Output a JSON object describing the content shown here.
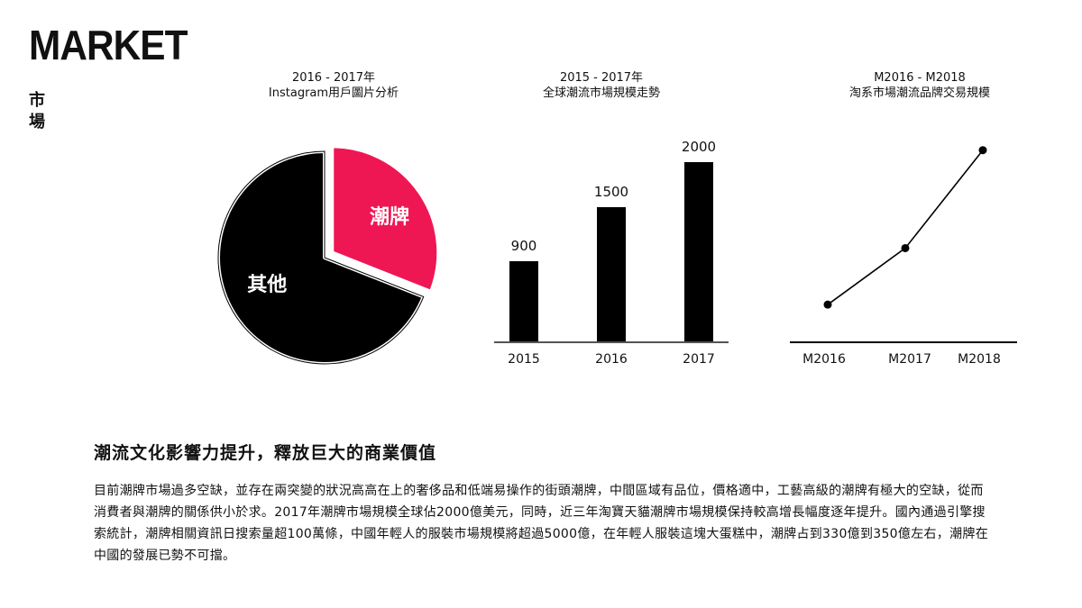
{
  "header": {
    "title_en": "MARKET",
    "title_zh": "市場"
  },
  "charts": {
    "pie": {
      "title_line1": "2016 - 2017年",
      "title_line2": "Instagram用戶圖片分析"
    },
    "bar": {
      "title_line1": "2015 - 2017年",
      "title_line2": "全球潮流市場規模走勢"
    },
    "line": {
      "title_line1": "M2016 - M2018",
      "title_line2": "淘系市場潮流品牌交易規模"
    }
  },
  "colors": {
    "accent": "#ef1654",
    "ink": "#000000",
    "axis": "#555555"
  },
  "chart_data": [
    {
      "type": "pie",
      "slices": [
        {
          "label": "潮牌",
          "value": 31,
          "color": "#ef1654"
        },
        {
          "label": "其他",
          "value": 69,
          "color": "#000000"
        }
      ]
    },
    {
      "type": "bar",
      "categories": [
        "2015",
        "2016",
        "2017"
      ],
      "values": [
        900,
        1500,
        2000
      ],
      "data_labels": [
        "900",
        "1500",
        "2000"
      ],
      "ylim": [
        0,
        2400
      ]
    },
    {
      "type": "line",
      "categories": [
        "M2016",
        "M2017",
        "M2018"
      ],
      "values": [
        1,
        2.5,
        5.1
      ],
      "ylim": [
        0,
        5.5
      ]
    }
  ],
  "article": {
    "heading": "潮流文化影響力提升，釋放巨大的商業價值",
    "body": "目前潮牌市場過多空缺，並存在兩突變的狀況高高在上的奢侈品和低端易操作的街頭潮牌，中間區域有品位，價格適中，工藝高級的潮牌有極大的空缺，從而消費者與潮牌的關係供小於求。2017年潮牌市場規模全球佔2000億美元，同時，近三年淘寶天貓潮牌市場規模保持較高增長幅度逐年提升。國內通過引擎搜索統計，潮牌相關資訊日搜索量超100萬條，中國年輕人的服裝市場規模將超過5000億，在年輕人服裝這塊大蛋糕中，潮牌占到330億到350億左右，潮牌在中國的發展已勢不可擋。"
  }
}
